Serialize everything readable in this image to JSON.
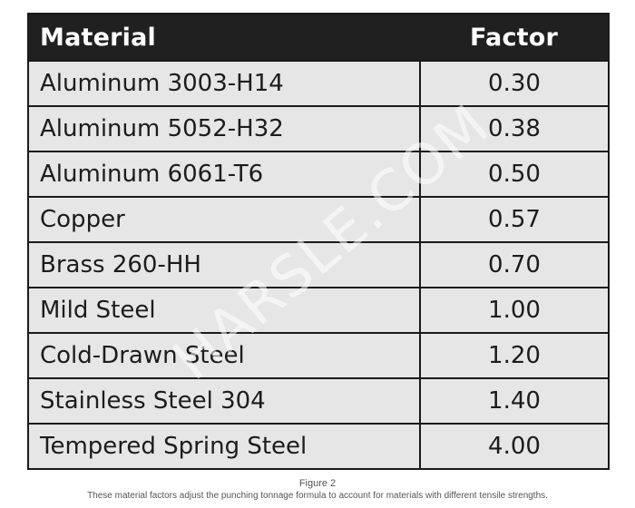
{
  "table": {
    "headers": {
      "material": "Material",
      "factor": "Factor"
    },
    "rows": [
      {
        "material": "Aluminum 3003-H14",
        "factor": "0.30"
      },
      {
        "material": "Aluminum 5052-H32",
        "factor": "0.38"
      },
      {
        "material": "Aluminum 6061-T6",
        "factor": "0.50"
      },
      {
        "material": "Copper",
        "factor": "0.57"
      },
      {
        "material": "Brass 260-HH",
        "factor": "0.70"
      },
      {
        "material": "Mild Steel",
        "factor": "1.00"
      },
      {
        "material": "Cold-Drawn Steel",
        "factor": "1.20"
      },
      {
        "material": "Stainless Steel 304",
        "factor": "1.40"
      },
      {
        "material": "Tempered Spring Steel",
        "factor": "4.00"
      }
    ]
  },
  "watermark": "HARSLE.COM",
  "caption": {
    "label": "Figure 2",
    "text": "These material factors adjust the punching tonnage formula to account for materials with different tensile strengths."
  },
  "colors": {
    "header_bg": "#202020",
    "cell_bg": "#e6e6e6",
    "border": "#1a1a1a"
  }
}
